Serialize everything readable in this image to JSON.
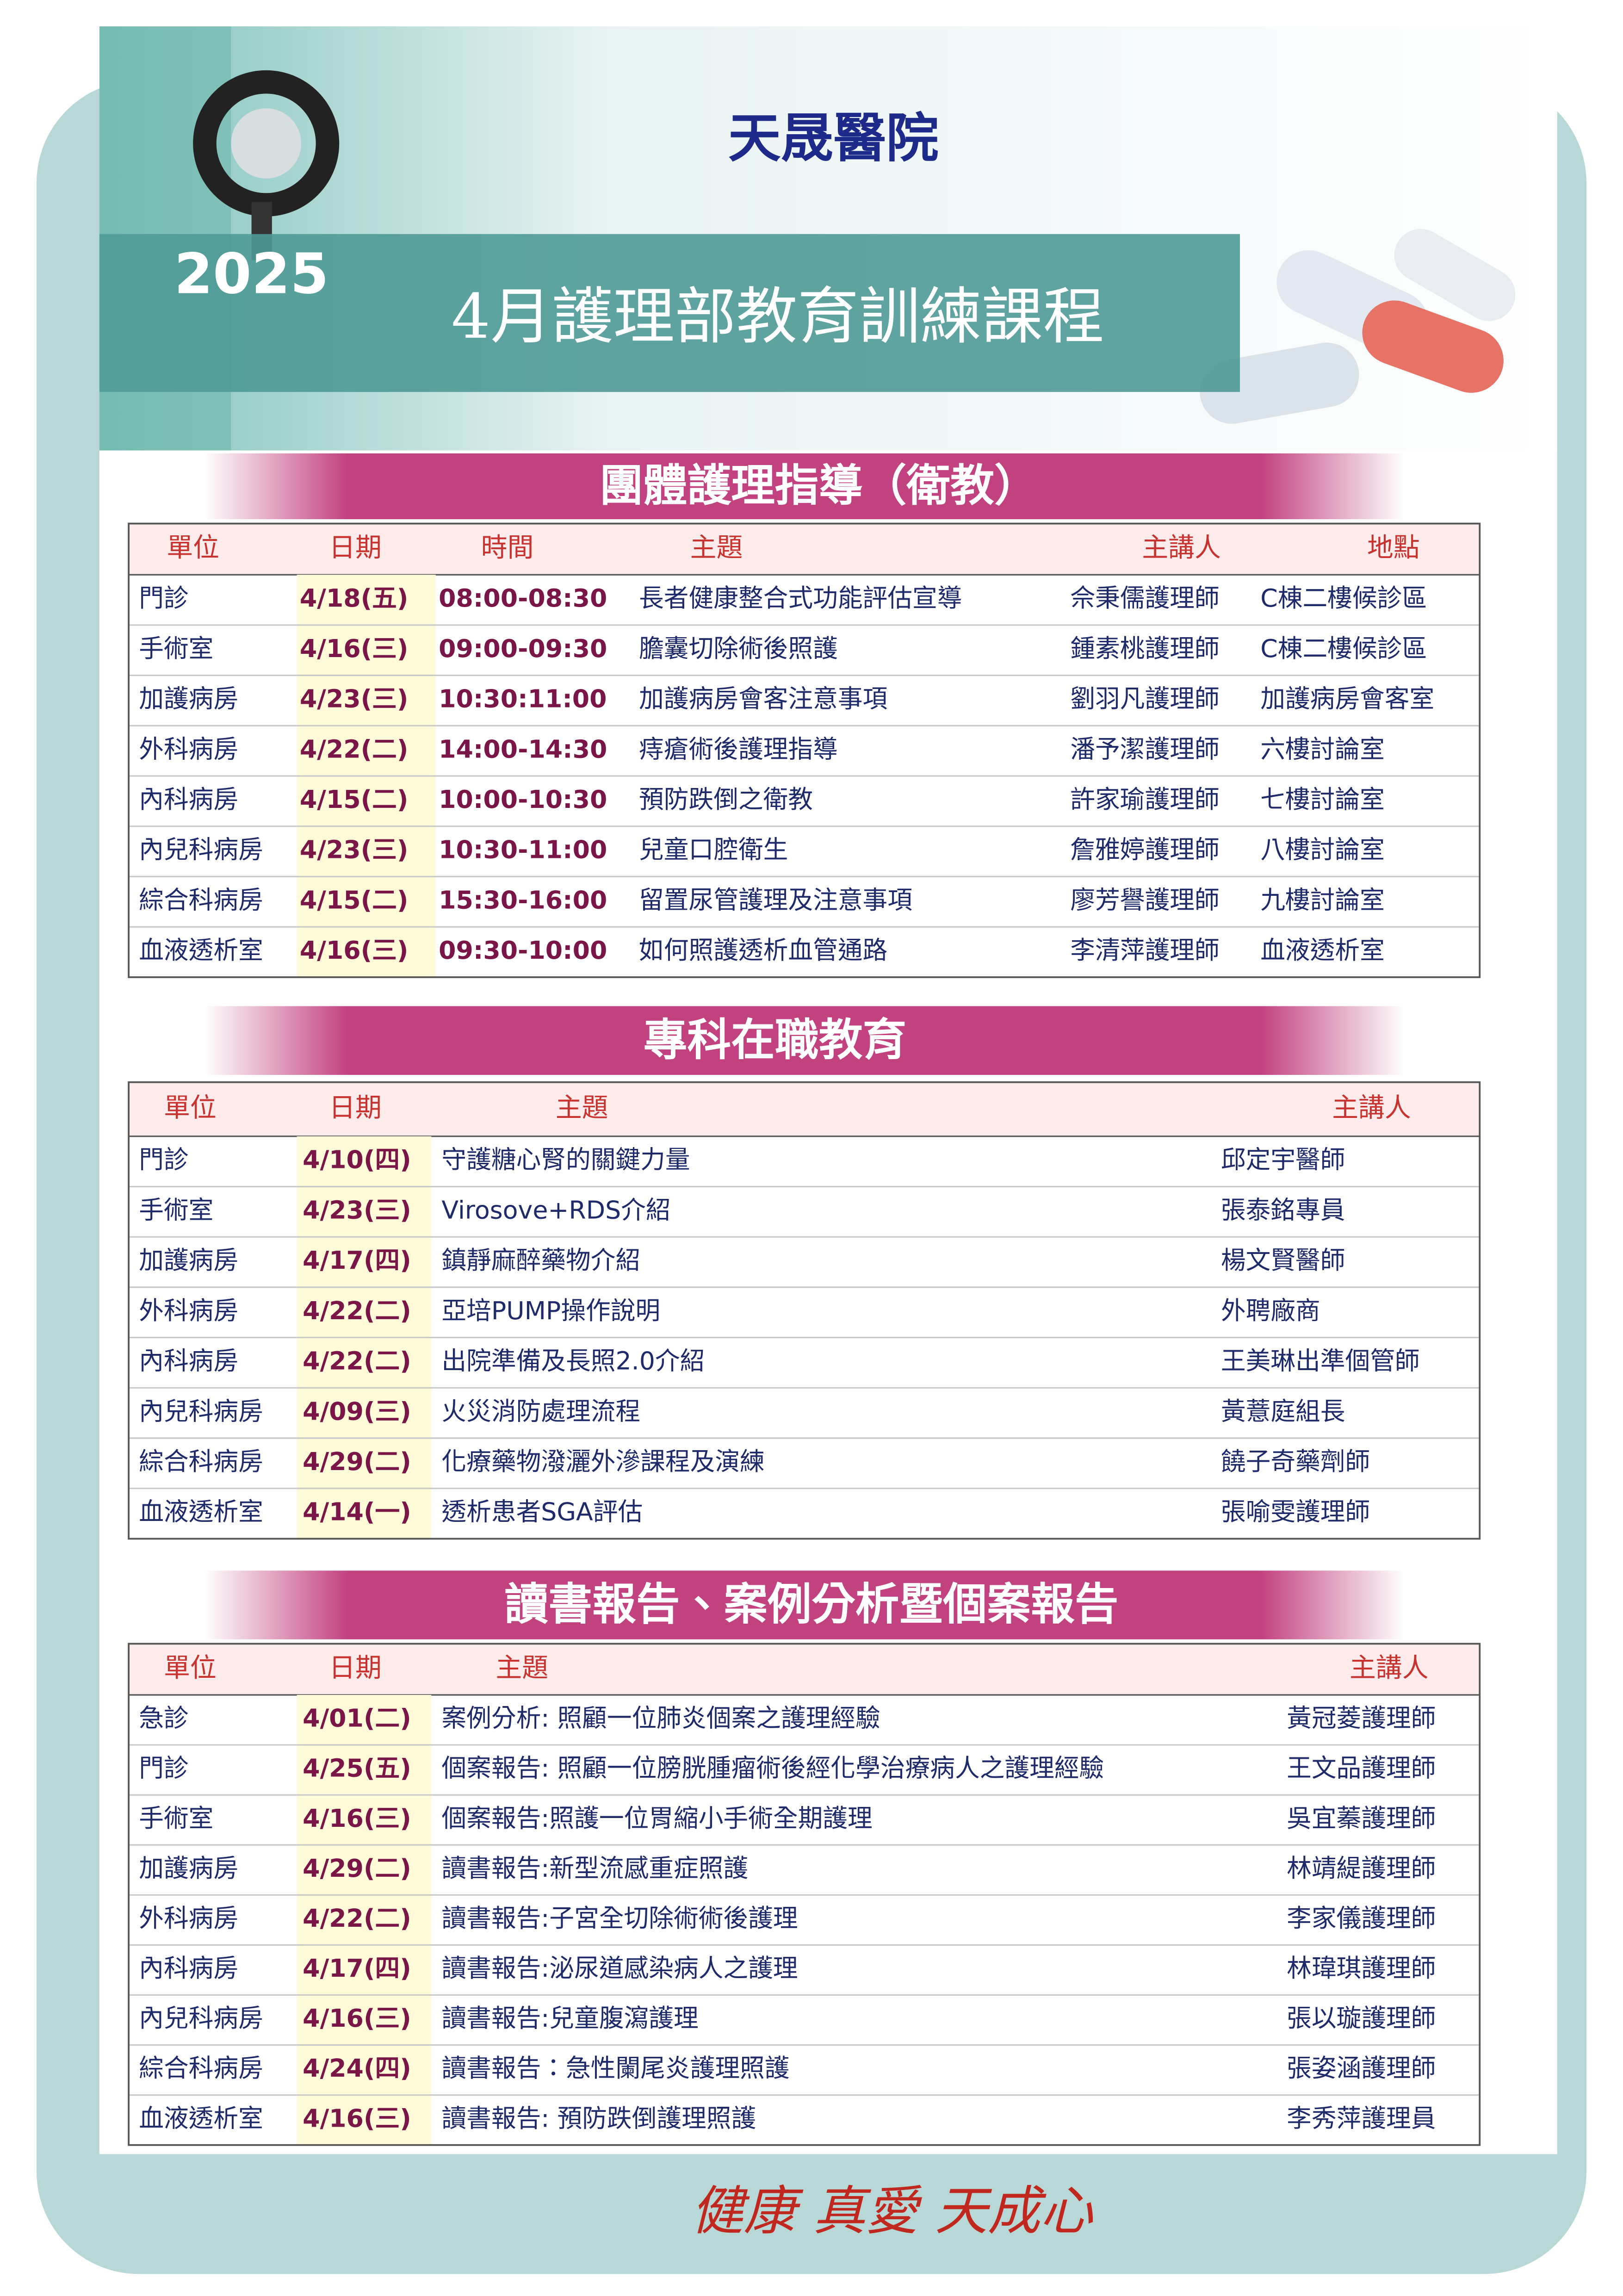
{
  "header": {
    "hospital": "天晟醫院",
    "year": "2025",
    "title": "4月護理部教育訓練課程"
  },
  "sections": [
    {
      "title": "團體護理指導（衛教）",
      "headers": [
        "單位",
        "日期",
        "時間",
        "主題",
        "主講人",
        "地點"
      ],
      "rows": [
        [
          "門診",
          "4/18(五)",
          "08:00-08:30",
          "長者健康整合式功能評估宣導",
          "佘秉儒護理師",
          "C棟二樓候診區"
        ],
        [
          "手術室",
          "4/16(三)",
          "09:00-09:30",
          "膽囊切除術後照護",
          "鍾素桃護理師",
          "C棟二樓候診區"
        ],
        [
          "加護病房",
          "4/23(三)",
          "10:30:11:00",
          "加護病房會客注意事項",
          "劉羽凡護理師",
          "加護病房會客室"
        ],
        [
          "外科病房",
          "4/22(二)",
          "14:00-14:30",
          "痔瘡術後護理指導",
          "潘予潔護理師",
          "六樓討論室"
        ],
        [
          "內科病房",
          "4/15(二)",
          "10:00-10:30",
          "預防跌倒之衛教",
          "許家瑜護理師",
          "七樓討論室"
        ],
        [
          "內兒科病房",
          "4/23(三)",
          "10:30-11:00",
          "兒童口腔衛生",
          "詹雅婷護理師",
          "八樓討論室"
        ],
        [
          "綜合科病房",
          "4/15(二)",
          "15:30-16:00",
          "留置尿管護理及注意事項",
          "廖芳譽護理師",
          "九樓討論室"
        ],
        [
          "血液透析室",
          "4/16(三)",
          "09:30-10:00",
          "如何照護透析血管通路",
          "李清萍護理師",
          "血液透析室"
        ]
      ]
    },
    {
      "title": "專科在職教育",
      "headers": [
        "單位",
        "日期",
        "主題",
        "主講人"
      ],
      "rows": [
        [
          "門診",
          "4/10(四)",
          "守護糖心腎的關鍵力量",
          "邱定宇醫師"
        ],
        [
          "手術室",
          "4/23(三)",
          "Virosove+RDS介紹",
          "張泰銘專員"
        ],
        [
          "加護病房",
          "4/17(四)",
          "鎮靜麻醉藥物介紹",
          "楊文賢醫師"
        ],
        [
          "外科病房",
          "4/22(二)",
          "亞培PUMP操作說明",
          "外聘廠商"
        ],
        [
          "內科病房",
          "4/22(二)",
          "出院準備及長照2.0介紹",
          "王美琳出準個管師"
        ],
        [
          "內兒科病房",
          "4/09(三)",
          "火災消防處理流程",
          "黃薏庭組長"
        ],
        [
          "綜合科病房",
          "4/29(二)",
          "化療藥物潑灑外滲課程及演練",
          "饒子奇藥劑師"
        ],
        [
          "血液透析室",
          "4/14(一)",
          "透析患者SGA評估",
          "張喻雯護理師"
        ]
      ]
    },
    {
      "title": "讀書報告、案例分析暨個案報告",
      "headers": [
        "單位",
        "日期",
        "主題",
        "主講人"
      ],
      "rows": [
        [
          "急診",
          "4/01(二)",
          "案例分析: 照顧一位肺炎個案之護理經驗",
          "黃冠菱護理師"
        ],
        [
          "門診",
          "4/25(五)",
          "個案報告: 照顧一位膀胱腫瘤術後經化學治療病人之護理經驗",
          "王文品護理師"
        ],
        [
          "手術室",
          "4/16(三)",
          "個案報告:照護一位胃縮小手術全期護理",
          "吳宜蓁護理師"
        ],
        [
          "加護病房",
          "4/29(二)",
          "讀書報告:新型流感重症照護",
          "林靖緹護理師"
        ],
        [
          "外科病房",
          "4/22(二)",
          "讀書報告:子宮全切除術術後護理",
          "李家儀護理師"
        ],
        [
          "內科病房",
          "4/17(四)",
          "讀書報告:泌尿道感染病人之護理",
          "林瑋琪護理師"
        ],
        [
          "內兒科病房",
          "4/16(三)",
          "讀書報告:兒童腹瀉護理",
          "張以璇護理師"
        ],
        [
          "綜合科病房",
          "4/24(四)",
          "讀書報告：急性闌尾炎護理照護",
          "張姿涵護理師"
        ],
        [
          "血液透析室",
          "4/16(三)",
          "讀書報告: 預防跌倒護理照護",
          "李秀萍護理員"
        ]
      ]
    }
  ],
  "footer": {
    "slogan": "健康 真愛 天成心"
  }
}
